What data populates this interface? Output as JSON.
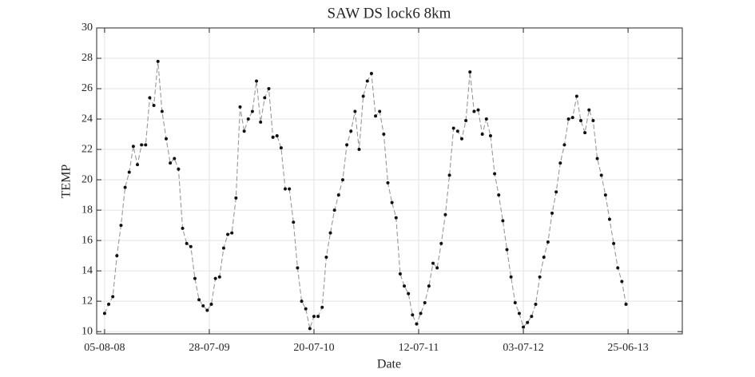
{
  "chart_data": {
    "type": "line",
    "title": "SAW DS lock6 8km",
    "x_label": "Date",
    "y_label": "TEMP",
    "x": [
      "05-08-08",
      "19-08-08",
      "02-09-08",
      "16-09-08",
      "30-09-08",
      "14-10-08",
      "28-10-08",
      "11-11-08",
      "25-11-08",
      "09-12-08",
      "23-12-08",
      "06-01-09",
      "20-01-09",
      "03-02-09",
      "17-02-09",
      "03-03-09",
      "17-03-09",
      "31-03-09",
      "14-04-09",
      "28-04-09",
      "12-05-09",
      "26-05-09",
      "09-06-09",
      "23-06-09",
      "07-07-09",
      "21-07-09",
      "04-08-09",
      "18-08-09",
      "01-09-09",
      "15-09-09",
      "29-09-09",
      "13-10-09",
      "27-10-09",
      "10-11-09",
      "24-11-09",
      "08-12-09",
      "22-12-09",
      "05-01-10",
      "19-01-10",
      "02-02-10",
      "16-02-10",
      "02-03-10",
      "16-03-10",
      "30-03-10",
      "13-04-10",
      "27-04-10",
      "11-05-10",
      "25-05-10",
      "08-06-10",
      "22-06-10",
      "06-07-10",
      "20-07-10",
      "03-08-10",
      "17-08-10",
      "31-08-10",
      "14-09-10",
      "28-09-10",
      "12-10-10",
      "26-10-10",
      "09-11-10",
      "23-11-10",
      "07-12-10",
      "21-12-10",
      "04-01-11",
      "18-01-11",
      "01-02-11",
      "15-02-11",
      "01-03-11",
      "15-03-11",
      "29-03-11",
      "12-04-11",
      "26-04-11",
      "10-05-11",
      "24-05-11",
      "07-06-11",
      "21-06-11",
      "05-07-11",
      "19-07-11",
      "02-08-11",
      "16-08-11",
      "30-08-11",
      "13-09-11",
      "27-09-11",
      "11-10-11",
      "25-10-11",
      "08-11-11",
      "22-11-11",
      "06-12-11",
      "20-12-11",
      "03-01-12",
      "17-01-12",
      "31-01-12",
      "14-02-12",
      "28-02-12",
      "13-03-12",
      "27-03-12",
      "10-04-12",
      "24-04-12",
      "08-05-12",
      "22-05-12",
      "05-06-12",
      "19-06-12",
      "03-07-12",
      "17-07-12",
      "31-07-12",
      "14-08-12",
      "28-08-12",
      "11-09-12",
      "25-09-12",
      "09-10-12",
      "23-10-12",
      "06-11-12",
      "20-11-12",
      "04-12-12",
      "18-12-12",
      "01-01-13",
      "15-01-13",
      "29-01-13",
      "12-02-13",
      "26-02-13",
      "12-03-13",
      "26-03-13",
      "09-04-13",
      "23-04-13",
      "07-05-13",
      "21-05-13",
      "04-06-13",
      "18-06-13"
    ],
    "values": [
      11.2,
      11.8,
      12.3,
      15.0,
      17.0,
      19.5,
      20.5,
      22.2,
      21.0,
      22.3,
      22.3,
      25.4,
      24.9,
      27.8,
      24.5,
      22.7,
      21.1,
      21.4,
      20.7,
      16.8,
      15.8,
      15.6,
      13.5,
      12.1,
      11.7,
      11.4,
      11.8,
      13.5,
      13.6,
      15.5,
      16.4,
      16.5,
      18.8,
      24.8,
      23.2,
      24.0,
      24.5,
      26.5,
      23.8,
      25.4,
      26.0,
      22.8,
      22.9,
      22.1,
      19.4,
      19.4,
      17.2,
      14.2,
      12.0,
      11.5,
      10.2,
      11.0,
      11.0,
      11.6,
      14.9,
      16.5,
      18.0,
      19.0,
      20.0,
      22.3,
      23.2,
      24.5,
      22.0,
      25.5,
      26.5,
      27.0,
      24.2,
      24.5,
      23.0,
      19.8,
      18.5,
      17.5,
      13.8,
      13.0,
      12.5,
      11.1,
      10.5,
      11.2,
      11.9,
      13.0,
      14.5,
      14.2,
      15.8,
      17.7,
      20.3,
      23.4,
      23.2,
      22.7,
      23.9,
      27.1,
      24.5,
      24.6,
      23.0,
      24.0,
      22.9,
      20.4,
      19.0,
      17.3,
      15.4,
      13.6,
      11.9,
      11.2,
      10.3,
      10.6,
      11.0,
      11.8,
      13.6,
      14.9,
      15.9,
      17.8,
      19.2,
      21.1,
      22.3,
      24.0,
      24.1,
      25.5,
      23.9,
      23.1,
      24.6,
      23.9,
      21.4,
      20.3,
      19.0,
      17.4,
      15.8,
      14.2,
      13.3,
      11.8
    ],
    "line_color": "#999999",
    "marker_color": "#111111",
    "xlim": [
      "09-07-08",
      "27-12-13"
    ],
    "xticks": [
      "05-08-08",
      "28-07-09",
      "20-07-10",
      "12-07-11",
      "03-07-12",
      "25-06-13"
    ],
    "ylim": [
      9.85,
      30
    ],
    "yticks": [
      10,
      12,
      14,
      16,
      18,
      20,
      22,
      24,
      26,
      28,
      30
    ],
    "grid": true
  }
}
